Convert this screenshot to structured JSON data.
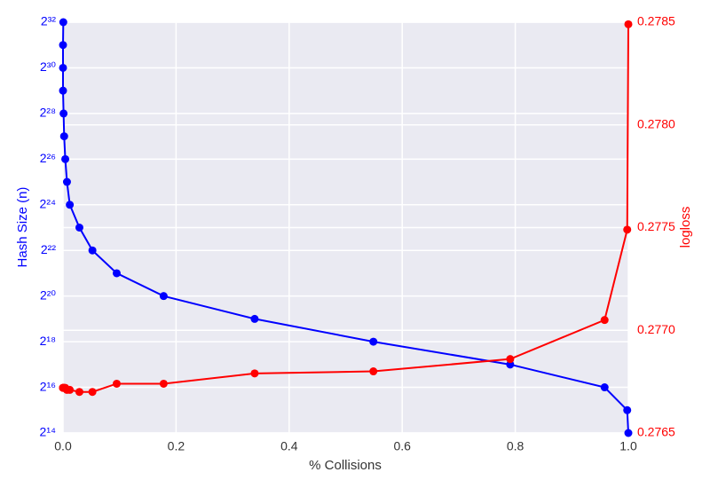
{
  "chart_data": {
    "type": "line",
    "x_label": "% Collisions",
    "y_label": "Hash Size (n)",
    "y2_label": "logloss",
    "x": [
      0.0005,
      0.0,
      0.0,
      0.0,
      0.001,
      0.002,
      0.004,
      0.007,
      0.012,
      0.029,
      0.052,
      0.095,
      0.178,
      0.339,
      0.549,
      0.791,
      0.958,
      0.998,
      1.0
    ],
    "series": [
      {
        "name": "Hash Size (n)",
        "color": "#0000ff",
        "axis": "y",
        "values": [
          4294967296,
          2147483648,
          1073741824,
          536870912,
          268435456,
          134217728,
          67108864,
          33554432,
          16777216,
          8388608,
          4194304,
          2097152,
          1048576,
          524288,
          262144,
          131072,
          65536,
          32768,
          16384
        ]
      },
      {
        "name": "logloss",
        "color": "#ff0000",
        "axis": "y2",
        "values": [
          0.27672,
          0.27672,
          0.27672,
          0.27672,
          0.27672,
          0.27672,
          0.27672,
          0.27671,
          0.27671,
          0.2767,
          0.2767,
          0.27674,
          0.27674,
          0.27679,
          0.2768,
          0.27686,
          0.27705,
          0.27749,
          0.27849
        ]
      }
    ],
    "xlim": [
      0,
      1.0
    ],
    "xticks": [
      {
        "value": 0,
        "label": "0.0"
      },
      0.2,
      0.4,
      0.6,
      0.8,
      {
        "value": 1,
        "label": "1.0"
      }
    ],
    "ylim": [
      16384,
      4294967296
    ],
    "log_y": true,
    "log_base": 2,
    "yticks": [
      {
        "value": 16384,
        "label": "2¹⁴"
      },
      {
        "value": 65536,
        "label": "2¹⁶"
      },
      {
        "value": 262144,
        "label": "2¹⁸"
      },
      {
        "value": 1048576,
        "label": "2²⁰"
      },
      {
        "value": 4194304,
        "label": "2²²"
      },
      {
        "value": 16777216,
        "label": "2²⁴"
      },
      {
        "value": 67108864,
        "label": "2²⁶"
      },
      {
        "value": 268435456,
        "label": "2²⁸"
      },
      {
        "value": 1073741824,
        "label": "2³⁰"
      },
      {
        "value": 4294967296,
        "label": "2³²"
      }
    ],
    "y2lim": [
      0.2765,
      0.2785
    ],
    "y2ticks": [
      0.2765,
      {
        "value": 0.277,
        "label": "0.2770"
      },
      0.2775,
      {
        "value": 0.278,
        "label": "0.2780"
      },
      0.2785
    ],
    "grid": true
  }
}
